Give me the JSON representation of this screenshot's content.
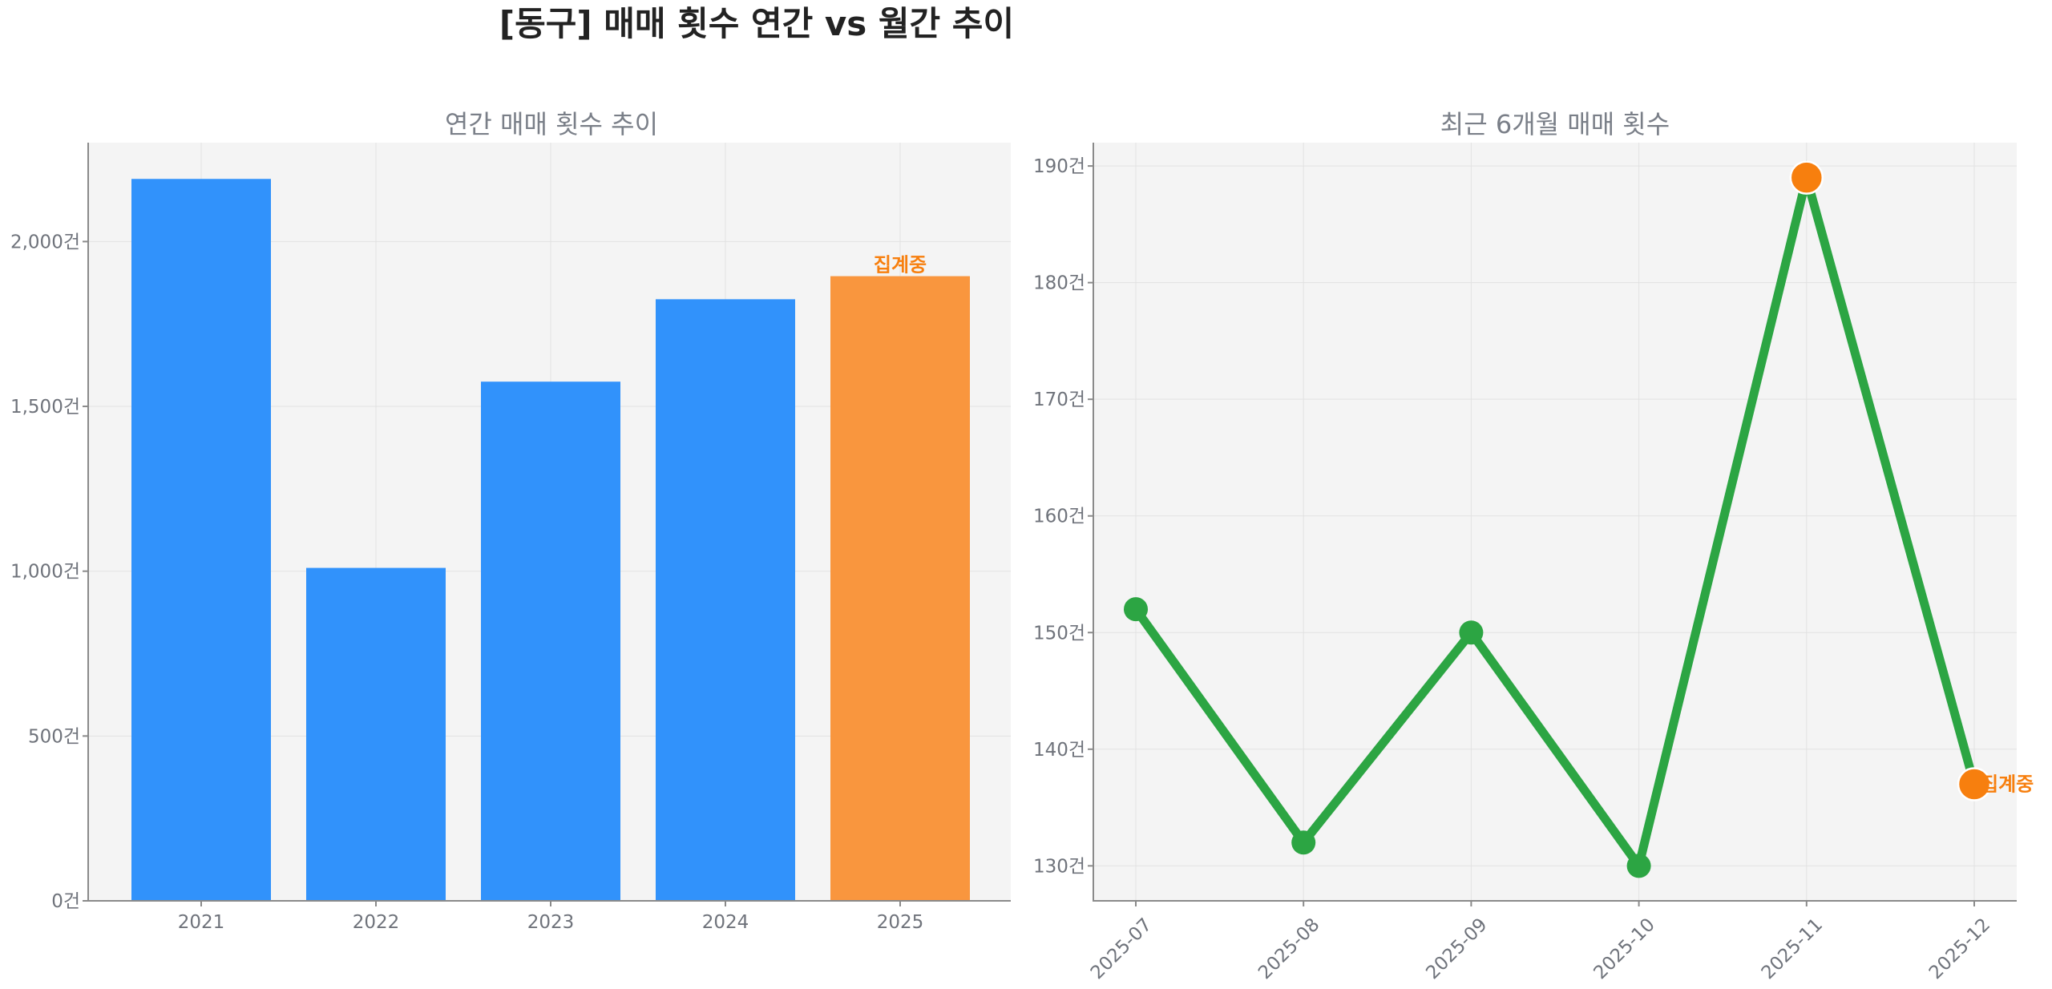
{
  "figure": {
    "title": "[동구] 매매 횟수 연간 vs 월간 추이"
  },
  "chart_data": [
    {
      "type": "bar",
      "title": "연간 매매 횟수 추이",
      "categories": [
        "2021",
        "2022",
        "2023",
        "2024",
        "2025"
      ],
      "values": [
        2190,
        1010,
        1575,
        1825,
        1895
      ],
      "ylim": [
        0,
        2300
      ],
      "yticks": [
        0,
        500,
        1000,
        1500,
        2000
      ],
      "ytick_labels": [
        "0건",
        "500건",
        "1,000건",
        "1,500건",
        "2,000건"
      ],
      "highlight_index": 4,
      "annotation": "집계중",
      "colors": {
        "bar": "#3192fb",
        "highlight": "#f9963e",
        "annotation": "#f77f0e",
        "panel_bg": "#f4f4f4"
      },
      "grid": true
    },
    {
      "type": "line",
      "title": "최근 6개월 매매 횟수",
      "x": [
        "2025-07",
        "2025-08",
        "2025-09",
        "2025-10",
        "2025-11",
        "2025-12"
      ],
      "values": [
        152,
        132,
        150,
        130,
        189,
        137
      ],
      "ylim": [
        127,
        192
      ],
      "yticks": [
        130,
        140,
        150,
        160,
        170,
        180,
        190
      ],
      "ytick_labels": [
        "130건",
        "140건",
        "150건",
        "160건",
        "170건",
        "180건",
        "190건"
      ],
      "highlight_indices": [
        4,
        5
      ],
      "annotation": "집계중",
      "colors": {
        "line": "#2ca543",
        "highlight": "#f77f0e",
        "annotation": "#f77f0e",
        "panel_bg": "#f4f4f4"
      },
      "grid": true
    }
  ]
}
